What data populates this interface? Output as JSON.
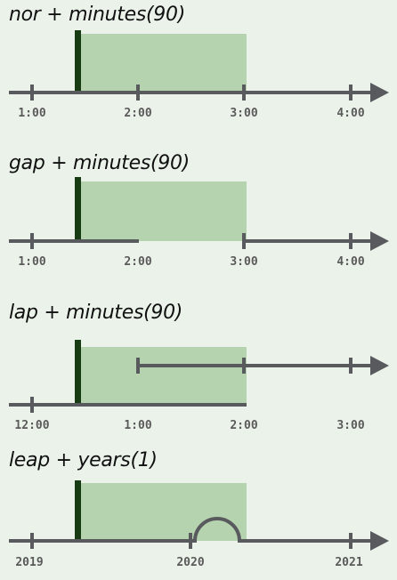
{
  "palette": {
    "background": "#eaf2ea",
    "shade": "#b4d3ae",
    "marker": "#173b12",
    "axis": "#595a5e",
    "tick_text": "#5a5a5a"
  },
  "panels": [
    {
      "title": "nor + minutes(90)",
      "ticks": [
        "1:00",
        "2:00",
        "3:00",
        "4:00"
      ]
    },
    {
      "title": "gap + minutes(90)",
      "ticks": [
        "1:00",
        "2:00",
        "3:00",
        "4:00"
      ]
    },
    {
      "title": "lap + minutes(90)",
      "ticks": [
        "12:00",
        "1:00",
        "2:00",
        "3:00"
      ]
    },
    {
      "title": "leap + years(1)",
      "ticks": [
        "2019",
        "2020",
        "2021"
      ]
    }
  ]
}
